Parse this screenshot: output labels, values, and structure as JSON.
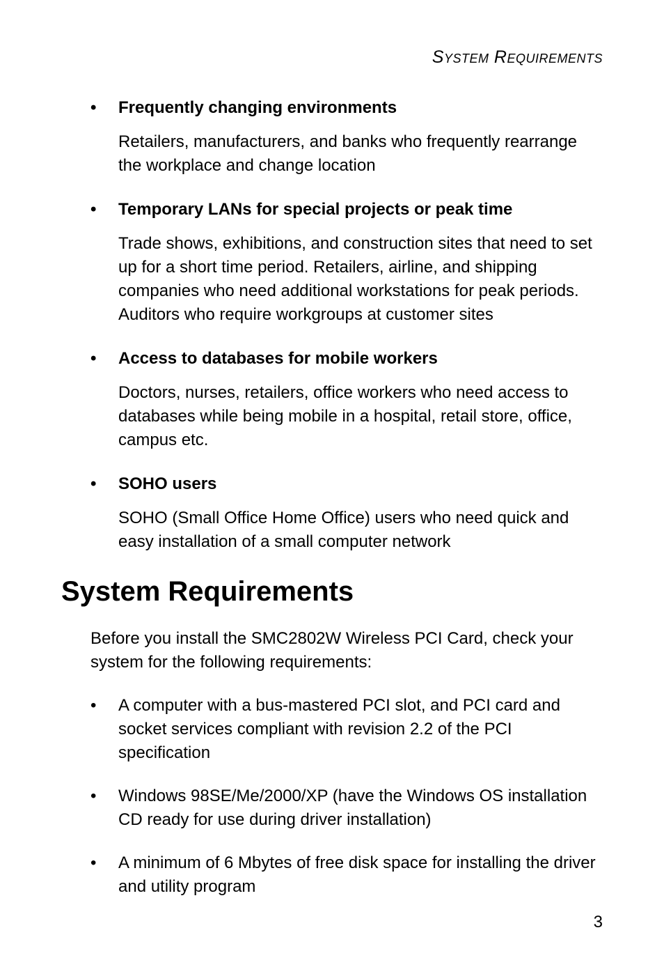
{
  "runningHead": "System Requirements",
  "sections": [
    {
      "title": "Frequently changing environments",
      "body": "Retailers, manufacturers, and banks who frequently rearrange the workplace and change location"
    },
    {
      "title": "Temporary LANs for special projects or peak time",
      "body": "Trade shows, exhibitions, and construction sites that need to set up for a short time period. Retailers, airline, and shipping companies who need additional workstations for peak periods. Auditors who require workgroups at customer sites"
    },
    {
      "title": "Access to databases for mobile workers",
      "body": "Doctors, nurses, retailers, office workers who need access to databases while being mobile in a hospital, retail store, office, campus etc."
    },
    {
      "title": "SOHO users",
      "body": "SOHO (Small Office Home Office) users who need quick and easy installation of a small computer network"
    }
  ],
  "heading": "System Requirements",
  "intro": "Before you install the SMC2802W Wireless PCI Card, check your system for the following requirements:",
  "requirements": [
    "A computer with a bus-mastered PCI slot, and PCI card and socket services compliant with revision 2.2 of the PCI specification",
    "Windows 98SE/Me/2000/XP (have the Windows OS installation CD ready for use during driver installation)",
    "A minimum of 6 Mbytes of free disk space for installing the driver and utility program"
  ],
  "pageNumber": "3",
  "bulletGlyph": "•"
}
